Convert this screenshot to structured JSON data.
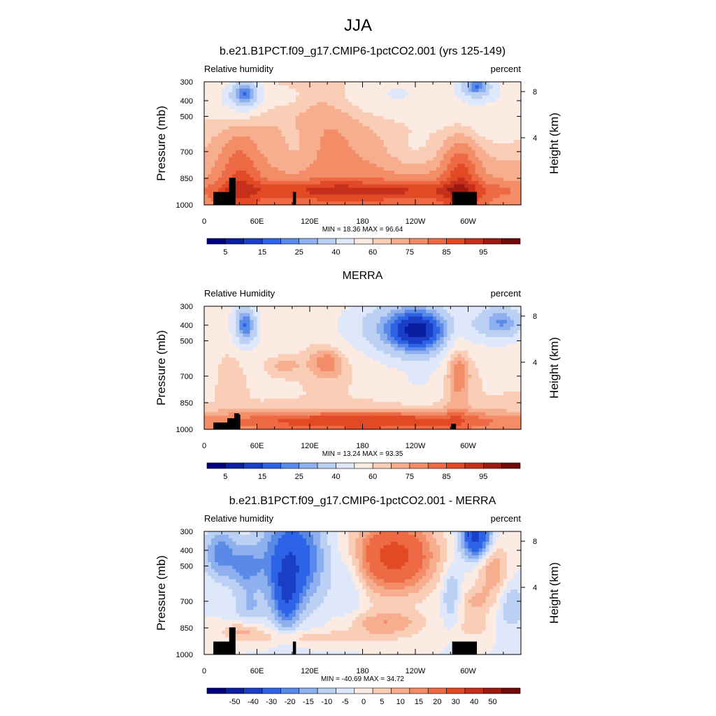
{
  "main_title": "JJA",
  "colors": {
    "rh_scale": [
      "#00007f",
      "#0a1fa0",
      "#1a3fc6",
      "#2d63e6",
      "#5a8ae8",
      "#8fb0ee",
      "#bcd0f4",
      "#dfe8fa",
      "#fcebe2",
      "#f9cdb6",
      "#f6ae8e",
      "#f38d67",
      "#ee6a45",
      "#e24a25",
      "#c4301b",
      "#9a1b12",
      "#6e0a07"
    ],
    "diff_scale": [
      "#00007f",
      "#0a1fa0",
      "#1a3fc6",
      "#2d63e6",
      "#5a8ae8",
      "#8fb0ee",
      "#bcd0f4",
      "#dfe8fa",
      "#fcebe2",
      "#f9cdb6",
      "#f6ae8e",
      "#f38d67",
      "#ee6a45",
      "#e24a25",
      "#c4301b",
      "#9a1b12",
      "#6e0a07"
    ],
    "terrain": "#000000"
  },
  "chart_data": [
    {
      "type": "heatmap",
      "title": "b.e21.B1PCT.f09_g17.CMIP6-1pctCO2.001 (yrs 125-149)",
      "left_label": "Relative humidity",
      "right_label": "percent",
      "ylabel": "Pressure (mb)",
      "ylabel_right": "Height (km)",
      "x_ticks": [
        "0",
        "60E",
        "120E",
        "180",
        "120W",
        "60W"
      ],
      "y_ticks": [
        "300",
        "400",
        "500",
        "700",
        "850",
        "1000"
      ],
      "right_ticks": [
        "8",
        "4"
      ],
      "stats": "MIN =  18.36  MAX =  96.64",
      "colorbar_labels": [
        "5",
        "15",
        "25",
        "40",
        "60",
        "75",
        "85",
        "95"
      ],
      "scale": "rh"
    },
    {
      "type": "heatmap",
      "title": "MERRA",
      "left_label": "Relative Humidity",
      "right_label": "percent",
      "ylabel": "Pressure (mb)",
      "ylabel_right": "Height (km)",
      "x_ticks": [
        "0",
        "60E",
        "120E",
        "180",
        "120W",
        "60W"
      ],
      "y_ticks": [
        "300",
        "400",
        "500",
        "700",
        "850",
        "1000"
      ],
      "right_ticks": [
        "8",
        "4"
      ],
      "stats": "MIN =  13.24  MAX =  93.35",
      "colorbar_labels": [
        "5",
        "15",
        "25",
        "40",
        "60",
        "75",
        "85",
        "95"
      ],
      "scale": "rh"
    },
    {
      "type": "heatmap",
      "title": "b.e21.B1PCT.f09_g17.CMIP6-1pctCO2.001 - MERRA",
      "left_label": "Relative humidity",
      "right_label": "percent",
      "ylabel": "Pressure (mb)",
      "ylabel_right": "Height (km)",
      "x_ticks": [
        "0",
        "60E",
        "120E",
        "180",
        "120W",
        "60W"
      ],
      "y_ticks": [
        "300",
        "400",
        "500",
        "700",
        "850",
        "1000"
      ],
      "right_ticks": [
        "8",
        "4"
      ],
      "stats": "MIN = -40.69  MAX =  34.72",
      "colorbar_labels": [
        "-50",
        "-40",
        "-30",
        "-20",
        "-15",
        "-10",
        "-5",
        "0",
        "5",
        "10",
        "15",
        "20",
        "30",
        "40",
        "50"
      ],
      "scale": "diff"
    }
  ]
}
